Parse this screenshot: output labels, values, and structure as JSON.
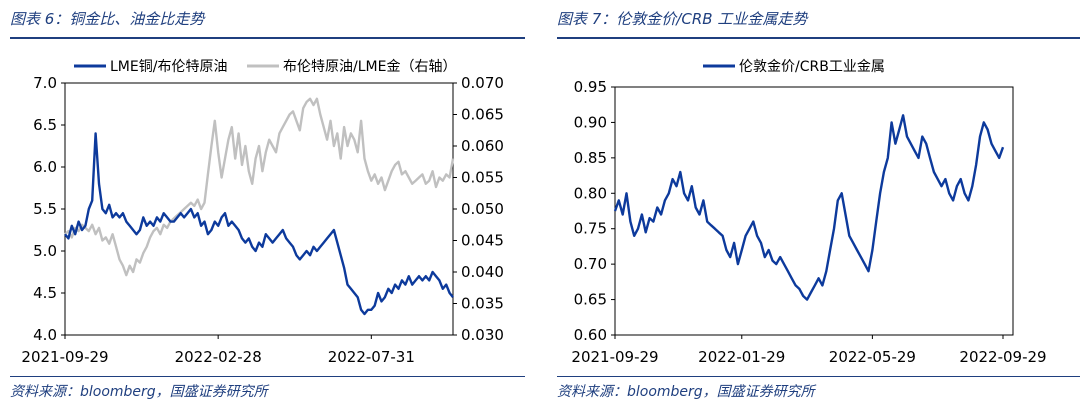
{
  "chart_data": [
    {
      "type": "line",
      "title": "图表 6：铜金比、油金比走势",
      "source": "资料来源：bloomberg，国盛证券研究所",
      "colors": {
        "primary": "#0d3a9c",
        "secondary": "#c0c0c0",
        "heading": "#1f3f7f"
      },
      "x_ticks": [
        "2021-09-29",
        "2022-02-28",
        "2022-07-31"
      ],
      "y_left": {
        "min": 4.0,
        "max": 7.0,
        "ticks": [
          "4.0",
          "4.5",
          "5.0",
          "5.5",
          "6.0",
          "6.5",
          "7.0"
        ]
      },
      "y_right": {
        "min": 0.03,
        "max": 0.07,
        "ticks": [
          "0.030",
          "0.035",
          "0.040",
          "0.045",
          "0.050",
          "0.055",
          "0.060",
          "0.065",
          "0.070"
        ]
      },
      "series": [
        {
          "name": "LME铜/布伦特原油",
          "axis": "left",
          "values": [
            5.2,
            5.15,
            5.3,
            5.2,
            5.35,
            5.25,
            5.3,
            5.5,
            5.6,
            6.4,
            5.8,
            5.5,
            5.45,
            5.55,
            5.4,
            5.45,
            5.4,
            5.45,
            5.35,
            5.3,
            5.25,
            5.2,
            5.25,
            5.4,
            5.3,
            5.35,
            5.3,
            5.4,
            5.35,
            5.45,
            5.4,
            5.35,
            5.35,
            5.4,
            5.45,
            5.4,
            5.45,
            5.5,
            5.4,
            5.45,
            5.3,
            5.35,
            5.2,
            5.25,
            5.35,
            5.3,
            5.4,
            5.45,
            5.3,
            5.35,
            5.3,
            5.25,
            5.15,
            5.1,
            5.15,
            5.05,
            5.0,
            5.1,
            5.05,
            5.2,
            5.15,
            5.1,
            5.15,
            5.2,
            5.25,
            5.15,
            5.1,
            5.05,
            4.95,
            4.9,
            4.95,
            5.0,
            4.95,
            5.05,
            5.0,
            5.05,
            5.1,
            5.15,
            5.2,
            5.25,
            5.1,
            4.95,
            4.8,
            4.6,
            4.55,
            4.5,
            4.45,
            4.3,
            4.25,
            4.3,
            4.3,
            4.35,
            4.5,
            4.4,
            4.45,
            4.55,
            4.5,
            4.6,
            4.55,
            4.65,
            4.6,
            4.7,
            4.6,
            4.65,
            4.7,
            4.65,
            4.7,
            4.65,
            4.75,
            4.7,
            4.65,
            4.55,
            4.6,
            4.5,
            4.45
          ]
        },
        {
          "name": "布伦特原油/LME金（右轴）",
          "axis": "right",
          "values": [
            0.046,
            0.0465,
            0.0455,
            0.047,
            0.0465,
            0.0475,
            0.047,
            0.0465,
            0.0475,
            0.046,
            0.047,
            0.045,
            0.0455,
            0.0445,
            0.046,
            0.044,
            0.042,
            0.041,
            0.0395,
            0.041,
            0.04,
            0.042,
            0.0415,
            0.043,
            0.044,
            0.0455,
            0.0465,
            0.047,
            0.046,
            0.0475,
            0.047,
            0.048,
            0.0485,
            0.049,
            0.0495,
            0.05,
            0.0505,
            0.051,
            0.0505,
            0.0515,
            0.05,
            0.051,
            0.0555,
            0.06,
            0.064,
            0.059,
            0.055,
            0.058,
            0.061,
            0.063,
            0.058,
            0.062,
            0.057,
            0.06,
            0.056,
            0.054,
            0.058,
            0.06,
            0.056,
            0.059,
            0.061,
            0.06,
            0.059,
            0.062,
            0.063,
            0.064,
            0.065,
            0.0655,
            0.064,
            0.0625,
            0.066,
            0.067,
            0.0675,
            0.0665,
            0.0675,
            0.065,
            0.063,
            0.061,
            0.064,
            0.06,
            0.062,
            0.058,
            0.063,
            0.06,
            0.062,
            0.061,
            0.059,
            0.064,
            0.058,
            0.056,
            0.0545,
            0.0555,
            0.054,
            0.055,
            0.053,
            0.0545,
            0.056,
            0.057,
            0.0575,
            0.0555,
            0.056,
            0.055,
            0.054,
            0.0545,
            0.055,
            0.0555,
            0.054,
            0.0545,
            0.056,
            0.0535,
            0.055,
            0.0545,
            0.0555,
            0.055,
            0.058
          ]
        }
      ]
    },
    {
      "type": "line",
      "title": "图表 7：伦敦金价/CRB 工业金属走势",
      "source": "资料来源：bloomberg，国盛证券研究所",
      "colors": {
        "primary": "#0d3a9c",
        "heading": "#1f3f7f"
      },
      "x_ticks": [
        "2021-09-29",
        "2022-01-29",
        "2022-05-29",
        "2022-09-29"
      ],
      "y_axis": {
        "min": 0.6,
        "max": 0.95,
        "ticks": [
          "0.60",
          "0.65",
          "0.70",
          "0.75",
          "0.80",
          "0.85",
          "0.90",
          "0.95"
        ]
      },
      "series": [
        {
          "name": "伦敦金价/CRB工业金属",
          "values": [
            0.775,
            0.79,
            0.77,
            0.8,
            0.76,
            0.74,
            0.75,
            0.77,
            0.745,
            0.765,
            0.76,
            0.78,
            0.77,
            0.79,
            0.8,
            0.82,
            0.81,
            0.83,
            0.8,
            0.79,
            0.81,
            0.78,
            0.77,
            0.79,
            0.76,
            0.755,
            0.75,
            0.745,
            0.74,
            0.72,
            0.71,
            0.73,
            0.7,
            0.72,
            0.74,
            0.75,
            0.76,
            0.74,
            0.73,
            0.71,
            0.72,
            0.705,
            0.7,
            0.71,
            0.7,
            0.69,
            0.68,
            0.67,
            0.665,
            0.655,
            0.65,
            0.66,
            0.67,
            0.68,
            0.67,
            0.69,
            0.72,
            0.75,
            0.79,
            0.8,
            0.77,
            0.74,
            0.73,
            0.72,
            0.71,
            0.7,
            0.69,
            0.72,
            0.76,
            0.8,
            0.83,
            0.85,
            0.9,
            0.87,
            0.89,
            0.91,
            0.88,
            0.87,
            0.86,
            0.85,
            0.88,
            0.87,
            0.85,
            0.83,
            0.82,
            0.81,
            0.82,
            0.8,
            0.79,
            0.81,
            0.82,
            0.8,
            0.79,
            0.81,
            0.84,
            0.88,
            0.9,
            0.89,
            0.87,
            0.86,
            0.85,
            0.865
          ]
        }
      ]
    }
  ]
}
